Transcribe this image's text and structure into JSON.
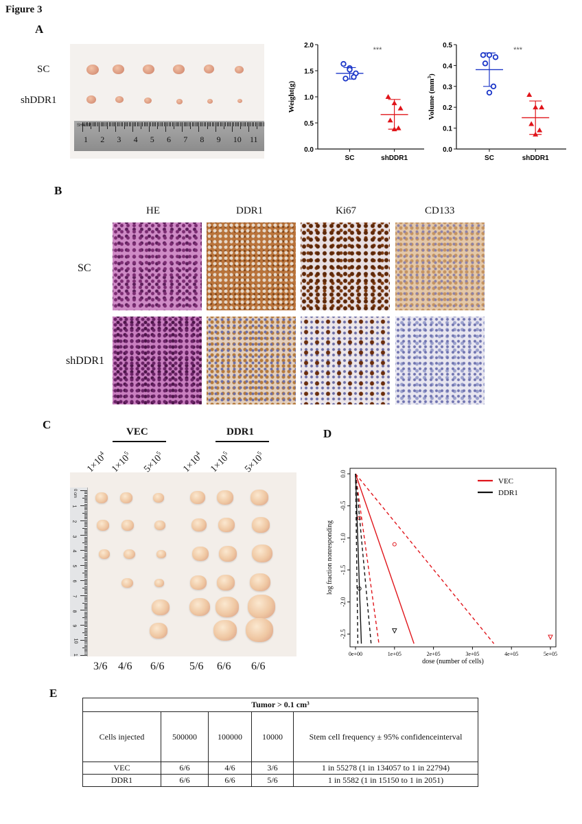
{
  "figure_title": "Figure 3",
  "panels": {
    "A": "A",
    "B": "B",
    "C": "C",
    "D": "D",
    "E": "E"
  },
  "panelA": {
    "row_labels": [
      "SC",
      "shDDR1"
    ],
    "ruler_numbers": [
      "1",
      "2",
      "3",
      "4",
      "5",
      "6",
      "7",
      "8",
      "9",
      "10",
      "11"
    ],
    "ruler_brand": "SHARP"
  },
  "weight_chart": {
    "type": "scatter",
    "ylabel": "Weight(g)",
    "categories": [
      "SC",
      "shDDR1"
    ],
    "yticks": [
      "0.0",
      "0.5",
      "1.0",
      "1.5",
      "2.0"
    ],
    "ylim": [
      0,
      2.0
    ],
    "significance": "***",
    "series": [
      {
        "group": "SC",
        "color": "#1a35c8",
        "marker": "circle",
        "values": [
          1.63,
          1.55,
          1.45,
          1.35,
          1.38,
          1.52
        ],
        "mean": 1.45,
        "err": [
          1.34,
          1.56
        ]
      },
      {
        "group": "shDDR1",
        "color": "#e0141a",
        "marker": "triangle",
        "values": [
          1.0,
          0.88,
          0.78,
          0.55,
          0.4,
          0.38
        ],
        "mean": 0.66,
        "err": [
          0.38,
          0.95
        ]
      }
    ]
  },
  "volume_chart": {
    "type": "scatter",
    "ylabel": "Volume (mm³)",
    "ylabel_main": "Volume (mm",
    "ylabel_sup": "3",
    "ylabel_end": ")",
    "categories": [
      "SC",
      "shDDR1"
    ],
    "yticks": [
      "0.0",
      "0.1",
      "0.2",
      "0.3",
      "0.4",
      "0.5"
    ],
    "ylim": [
      0,
      0.5
    ],
    "significance": "***",
    "series": [
      {
        "group": "SC",
        "color": "#1a35c8",
        "marker": "circle",
        "values": [
          0.45,
          0.45,
          0.44,
          0.41,
          0.3,
          0.27
        ],
        "mean": 0.38,
        "err": [
          0.3,
          0.46
        ]
      },
      {
        "group": "shDDR1",
        "color": "#e0141a",
        "marker": "triangle",
        "values": [
          0.26,
          0.2,
          0.2,
          0.12,
          0.09,
          0.07
        ],
        "mean": 0.15,
        "err": [
          0.07,
          0.23
        ]
      }
    ]
  },
  "panelB": {
    "columns": [
      "HE",
      "DDR1",
      "Ki67",
      "CD133"
    ],
    "rows": [
      "SC",
      "shDDR1"
    ]
  },
  "panelC": {
    "groups": [
      "VEC",
      "DDR1"
    ],
    "doses": [
      {
        "base": "1×10",
        "exp": "4"
      },
      {
        "base": "1×10",
        "exp": "5"
      },
      {
        "base": "5×10",
        "exp": "5"
      },
      {
        "base": "1×10",
        "exp": "4"
      },
      {
        "base": "1×10",
        "exp": "5"
      },
      {
        "base": "5×10",
        "exp": "5"
      }
    ],
    "fractions": [
      "3/6",
      "4/6",
      "6/6",
      "5/6",
      "6/6",
      "6/6"
    ],
    "tumor_counts": [
      3,
      4,
      6,
      5,
      6,
      6
    ],
    "ruler_label": "0 cm",
    "ruler_numbers": [
      "1",
      "2",
      "3",
      "4",
      "5",
      "6",
      "7",
      "8",
      "9",
      "10",
      "11"
    ]
  },
  "elda_chart": {
    "type": "line",
    "xlabel": "dose (number of cells)",
    "ylabel": "log fraction nonresponding",
    "xticks": [
      "0e+00",
      "1e+05",
      "2e+05",
      "3e+05",
      "4e+05",
      "5e+05"
    ],
    "yticks": [
      "0.0",
      "-0.5",
      "-1.0",
      "-1.5",
      "-2.0",
      "-2.5"
    ],
    "xlim": [
      0,
      500000
    ],
    "ylim": [
      -2.65,
      0.05
    ],
    "legend_position": "top-right",
    "series": [
      {
        "name": "VEC",
        "color": "#e0141a",
        "estimate": [
          [
            0,
            0
          ],
          [
            150000,
            -2.65
          ]
        ],
        "ci": [
          [
            [
              0,
              0
            ],
            [
              60000,
              -2.65
            ]
          ],
          [
            [
              0,
              0
            ],
            [
              355000,
              -2.65
            ]
          ]
        ],
        "points": [
          {
            "x": 10000,
            "y": -0.69,
            "marker": "circle"
          },
          {
            "x": 100000,
            "y": -1.1,
            "marker": "circle"
          },
          {
            "x": 500000,
            "y": -2.55,
            "marker": "triangle-down"
          }
        ]
      },
      {
        "name": "DDR1",
        "color": "#111111",
        "estimate": [
          [
            0,
            0
          ],
          [
            15000,
            -2.65
          ]
        ],
        "ci": [
          [
            [
              0,
              0
            ],
            [
              6000,
              -2.65
            ]
          ],
          [
            [
              0,
              0
            ],
            [
              40000,
              -2.65
            ]
          ]
        ],
        "points": [
          {
            "x": 10000,
            "y": -1.79,
            "marker": "circle"
          },
          {
            "x": 100000,
            "y": -2.45,
            "marker": "triangle-down"
          }
        ]
      }
    ]
  },
  "table": {
    "header": "Tumor > 0.1 cm³",
    "col_labels": [
      "Cells injected",
      "500000",
      "100000",
      "10000",
      "Stem cell frequency ± 95% confidenceinterval"
    ],
    "rows": [
      [
        "VEC",
        "6/6",
        "4/6",
        "3/6",
        "1 in 55278 (1 in 134057 to 1 in 22794)"
      ],
      [
        "DDR1",
        "6/6",
        "6/6",
        "5/6",
        "1 in 5582 (1 in 15150 to 1 in 2051)"
      ]
    ]
  }
}
